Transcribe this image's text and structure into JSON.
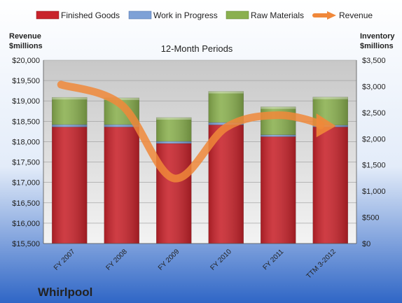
{
  "chart_data": {
    "type": "bar",
    "subtitle": "12-Month Periods",
    "company": "Whirlpool",
    "left_axis_label": [
      "Revenue",
      "$millions"
    ],
    "right_axis_label": [
      "Inventory",
      "$millions"
    ],
    "categories": [
      "FY 2007",
      "FY 2008",
      "FY 2009",
      "FY 2010",
      "FY 2011",
      "TTM 3-2012"
    ],
    "left_ylim": [
      15500,
      20000
    ],
    "left_ticks": [
      15500,
      16000,
      16500,
      17000,
      17500,
      18000,
      18500,
      19000,
      19500,
      20000
    ],
    "left_tick_labels": [
      "$15,500",
      "$16,000",
      "$16,500",
      "$17,000",
      "$17,500",
      "$18,000",
      "$18,500",
      "$19,000",
      "$19,500",
      "$20,000"
    ],
    "right_ylim": [
      0,
      3500
    ],
    "right_ticks": [
      0,
      500,
      1000,
      1500,
      2000,
      2500,
      3000,
      3500
    ],
    "right_tick_labels": [
      "$0",
      "$500",
      "$1,000",
      "$1,500",
      "$2,000",
      "$2,500",
      "$3,000",
      "$3,500"
    ],
    "legend_position": "top",
    "grid": true,
    "stacked": true,
    "series": [
      {
        "name": "Finished Goods",
        "axis": "right",
        "color": "#c8232b",
        "values": [
          2225,
          2225,
          1910,
          2265,
          2040,
          2225
        ]
      },
      {
        "name": "Work in Progress",
        "axis": "right",
        "color": "#7ea1d6",
        "values": [
          45,
          45,
          40,
          45,
          35,
          35
        ]
      },
      {
        "name": "Raw Materials",
        "axis": "right",
        "color": "#8ab04f",
        "values": [
          520,
          510,
          455,
          595,
          535,
          535
        ]
      },
      {
        "name": "Revenue",
        "type": "line",
        "axis": "left",
        "color": "#f0883a",
        "values": [
          19400,
          18900,
          17100,
          18350,
          18650,
          18400
        ]
      }
    ]
  }
}
